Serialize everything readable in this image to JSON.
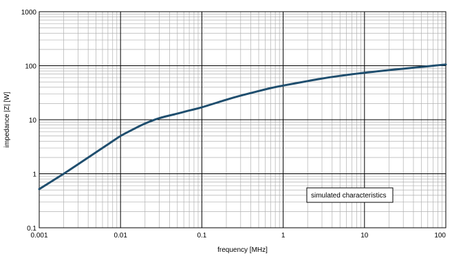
{
  "chart_data": {
    "type": "line",
    "title": "",
    "xlabel": "frequency [MHz]",
    "ylabel": "impedance |Z| [W]",
    "x_scale": "log",
    "y_scale": "log",
    "xlim": [
      0.001,
      100
    ],
    "ylim": [
      0.1,
      1000
    ],
    "grid": true,
    "x_ticks": [
      "0.001",
      "0.01",
      "0.1",
      "1",
      "10",
      "100"
    ],
    "y_ticks": [
      "0.1",
      "1",
      "10",
      "100",
      "1000"
    ],
    "legend": "simulated characteristics",
    "legend_placement": "bottom-right",
    "line_color": "#1f4e6e",
    "series": [
      {
        "name": "simulated characteristics",
        "x": [
          0.001,
          0.002,
          0.003,
          0.005,
          0.007,
          0.01,
          0.015,
          0.02,
          0.03,
          0.05,
          0.07,
          0.1,
          0.2,
          0.3,
          0.5,
          0.7,
          1,
          2,
          3,
          5,
          7,
          10,
          20,
          30,
          50,
          70,
          100
        ],
        "y": [
          0.52,
          1.0,
          1.5,
          2.5,
          3.5,
          5.0,
          6.9,
          8.5,
          10.7,
          13.0,
          14.8,
          17.0,
          23.5,
          28.0,
          34.0,
          38.5,
          43.0,
          52.0,
          58.0,
          65.0,
          69.5,
          74.0,
          83.0,
          88.0,
          95.0,
          100.0,
          105.0
        ]
      }
    ]
  }
}
